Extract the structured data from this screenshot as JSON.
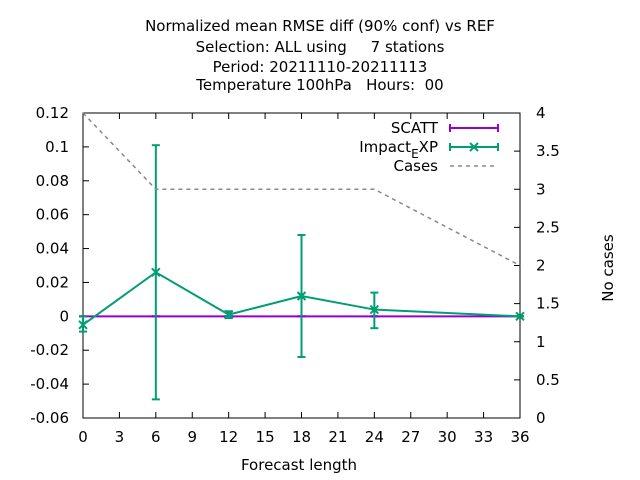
{
  "chart_data": {
    "type": "line",
    "title_lines": [
      "Normalized mean RMSE diff (90% conf) vs REF",
      "Selection: ALL using     7 stations",
      "Period: 20211110-20211113",
      "Temperature 100hPa   Hours:  00"
    ],
    "xlabel": "Forecast length",
    "ylabel": "",
    "y2label": "No cases",
    "xlim": [
      0,
      36
    ],
    "ylim": [
      -0.06,
      0.12
    ],
    "y2lim": [
      0,
      4
    ],
    "x_ticks": [
      0,
      3,
      6,
      9,
      12,
      15,
      18,
      21,
      24,
      27,
      30,
      33,
      36
    ],
    "y_ticks": [
      -0.06,
      -0.04,
      -0.02,
      0,
      0.02,
      0.04,
      0.06,
      0.08,
      0.1,
      0.12
    ],
    "y_tick_labels": [
      "-0.06",
      "-0.04",
      "-0.02",
      "0",
      "0.02",
      "0.04",
      "0.06",
      "0.08",
      "0.1",
      "0.12"
    ],
    "y2_ticks": [
      0,
      0.5,
      1,
      1.5,
      2,
      2.5,
      3,
      3.5,
      4
    ],
    "y2_tick_labels": [
      "0",
      "0.5",
      "1",
      "1.5",
      "2",
      "2.5",
      "3",
      "3.5",
      "4"
    ],
    "grid": false,
    "legend_position": "top-right",
    "series": [
      {
        "name": "SCATT",
        "color": "#9400d3",
        "axis": "y",
        "style": "line-errorbars",
        "x": [
          0,
          6,
          12,
          18,
          24,
          36
        ],
        "y": [
          0,
          0,
          0,
          0,
          0,
          0
        ],
        "err_low": [
          0,
          0,
          0,
          0,
          0,
          0
        ],
        "err_high": [
          0,
          0,
          0,
          0,
          0,
          0
        ]
      },
      {
        "name": "Impact_EXP",
        "color": "#009e73",
        "axis": "y",
        "style": "line-errorbars",
        "marker": "x",
        "x": [
          0,
          6,
          12,
          18,
          24,
          36
        ],
        "y": [
          -0.005,
          0.026,
          0.001,
          0.012,
          0.004,
          0.0
        ],
        "err_low": [
          -0.009,
          -0.049,
          -0.001,
          -0.024,
          -0.007,
          0.0
        ],
        "err_high": [
          0.0,
          0.101,
          0.003,
          0.048,
          0.014,
          0.0
        ]
      },
      {
        "name": "Cases",
        "color": "#888888",
        "axis": "y2",
        "style": "dashed",
        "x": [
          0,
          6,
          12,
          18,
          24,
          30,
          36
        ],
        "y": [
          4,
          3,
          3,
          3,
          3,
          2.5,
          2
        ]
      }
    ]
  }
}
